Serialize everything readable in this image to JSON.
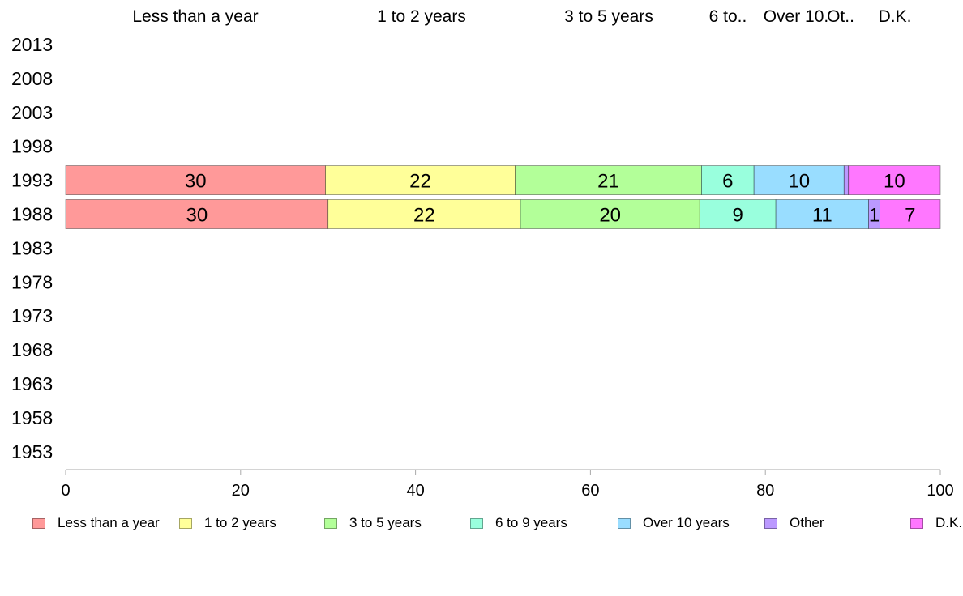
{
  "chart_data": {
    "type": "bar",
    "orientation": "horizontal",
    "stacked": true,
    "title": "",
    "xlabel": "",
    "ylabel": "",
    "xlim": [
      0,
      100
    ],
    "x_ticks": [
      "0",
      "20",
      "40",
      "60",
      "80",
      "100"
    ],
    "categories": [
      "2013",
      "2008",
      "2003",
      "1998",
      "1993",
      "1988",
      "1983",
      "1978",
      "1973",
      "1968",
      "1963",
      "1958",
      "1953"
    ],
    "column_headers": [
      "Less than a year",
      "1 to 2 years",
      "3 to 5 years",
      "6 to..",
      "Over 10.",
      "Ot..",
      "D.K."
    ],
    "series": [
      {
        "name": "Less than a year",
        "color": "#ff9999",
        "values": [
          null,
          null,
          null,
          null,
          29.7,
          30.0,
          null,
          null,
          null,
          null,
          null,
          null,
          null
        ],
        "labels": [
          "",
          "",
          "",
          "",
          "30",
          "30",
          "",
          "",
          "",
          "",
          "",
          "",
          ""
        ]
      },
      {
        "name": "1 to 2 years",
        "color": "#ffff99",
        "values": [
          null,
          null,
          null,
          null,
          21.7,
          22.0,
          null,
          null,
          null,
          null,
          null,
          null,
          null
        ],
        "labels": [
          "",
          "",
          "",
          "",
          "22",
          "22",
          "",
          "",
          "",
          "",
          "",
          "",
          ""
        ]
      },
      {
        "name": "3 to 5 years",
        "color": "#b3ff99",
        "values": [
          null,
          null,
          null,
          null,
          21.3,
          20.5,
          null,
          null,
          null,
          null,
          null,
          null,
          null
        ],
        "labels": [
          "",
          "",
          "",
          "",
          "21",
          "20",
          "",
          "",
          "",
          "",
          "",
          "",
          ""
        ]
      },
      {
        "name": "6 to 9 years",
        "color": "#99ffdd",
        "values": [
          null,
          null,
          null,
          null,
          6.0,
          8.7,
          null,
          null,
          null,
          null,
          null,
          null,
          null
        ],
        "labels": [
          "",
          "",
          "",
          "",
          "6",
          "9",
          "",
          "",
          "",
          "",
          "",
          "",
          ""
        ]
      },
      {
        "name": "Over 10 years",
        "color": "#99ddff",
        "values": [
          null,
          null,
          null,
          null,
          10.3,
          10.6,
          null,
          null,
          null,
          null,
          null,
          null,
          null
        ],
        "labels": [
          "",
          "",
          "",
          "",
          "10",
          "11",
          "",
          "",
          "",
          "",
          "",
          "",
          ""
        ]
      },
      {
        "name": "Other",
        "color": "#bb99ff",
        "values": [
          null,
          null,
          null,
          null,
          0.5,
          1.3,
          null,
          null,
          null,
          null,
          null,
          null,
          null
        ],
        "labels": [
          "",
          "",
          "",
          "",
          "",
          "1",
          "",
          "",
          "",
          "",
          "",
          "",
          ""
        ]
      },
      {
        "name": "D.K.",
        "color": "#ff77ff",
        "values": [
          null,
          null,
          null,
          null,
          10.5,
          6.9,
          null,
          null,
          null,
          null,
          null,
          null,
          null
        ],
        "labels": [
          "",
          "",
          "",
          "",
          "10",
          "7",
          "",
          "",
          "",
          "",
          "",
          "",
          ""
        ]
      }
    ],
    "legend": "bottom",
    "grid": false
  }
}
